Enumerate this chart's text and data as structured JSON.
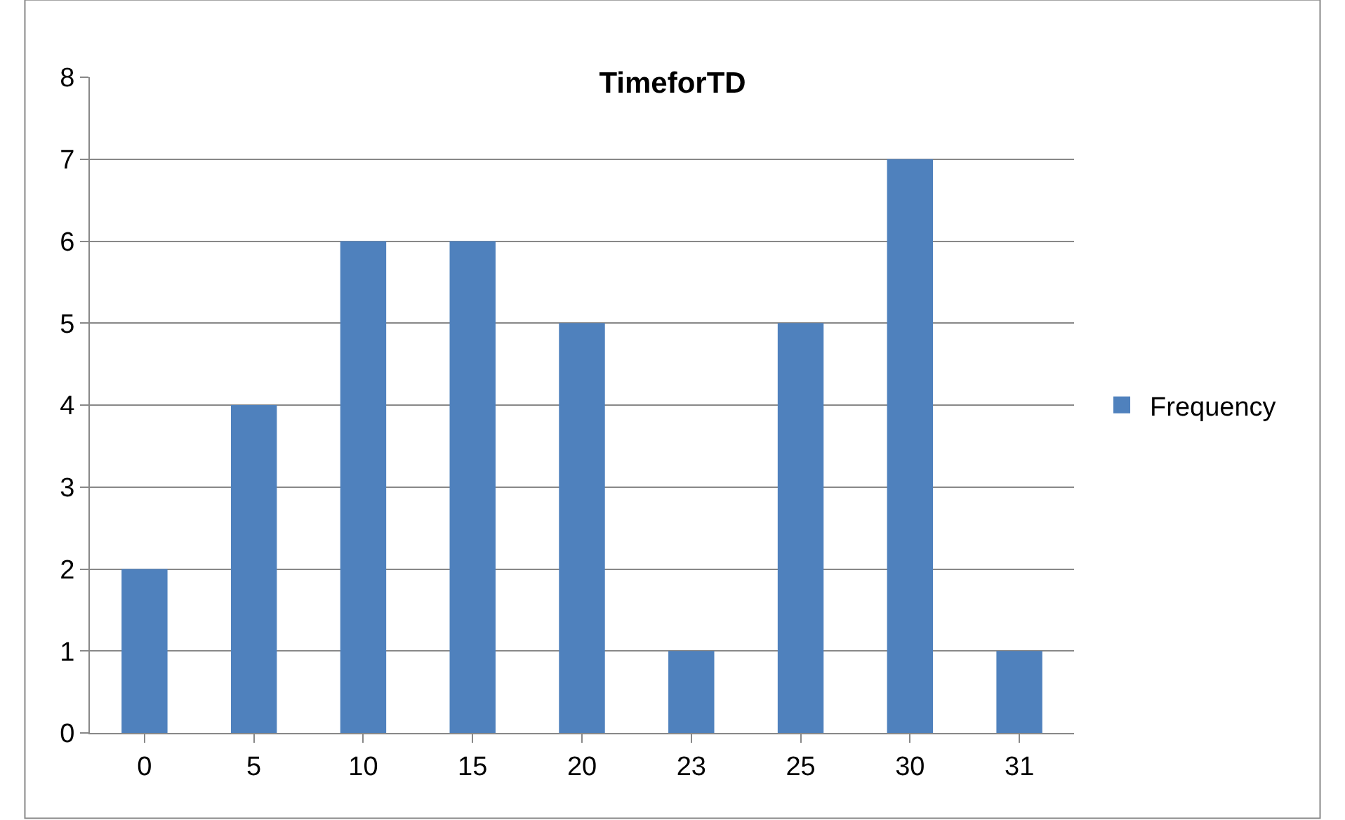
{
  "chart_data": {
    "type": "bar",
    "title": "TimeforTD",
    "categories": [
      "0",
      "5",
      "10",
      "15",
      "20",
      "23",
      "25",
      "30",
      "31"
    ],
    "series": [
      {
        "name": "Frequency",
        "color": "#4f81bd",
        "values": [
          2,
          4,
          6,
          6,
          5,
          1,
          5,
          7,
          1
        ]
      }
    ],
    "ylim": [
      0,
      8
    ],
    "yticks": [
      0,
      1,
      2,
      3,
      4,
      5,
      6,
      7,
      8
    ],
    "grid": "y",
    "legend": "right"
  }
}
